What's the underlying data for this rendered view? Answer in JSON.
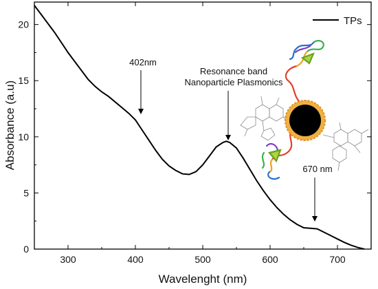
{
  "chart_data": {
    "type": "line",
    "xlabel": "Wavelenght (nm)",
    "ylabel": "Absorbance (a.u)",
    "xlim": [
      250,
      750
    ],
    "ylim": [
      0,
      22
    ],
    "xticks": [
      300,
      400,
      500,
      600,
      700
    ],
    "yticks": [
      0,
      5,
      10,
      15,
      20
    ],
    "grid": false,
    "legend_position": "top-right",
    "series": [
      {
        "name": "TPs",
        "color": "#000000",
        "x": [
          250,
          260,
          270,
          280,
          290,
          300,
          310,
          320,
          330,
          340,
          350,
          360,
          370,
          380,
          390,
          400,
          410,
          420,
          430,
          440,
          450,
          460,
          470,
          480,
          490,
          500,
          510,
          520,
          530,
          535,
          540,
          550,
          560,
          570,
          580,
          590,
          600,
          610,
          620,
          630,
          640,
          650,
          660,
          670,
          680,
          690,
          700,
          710,
          720,
          730,
          740
        ],
        "y": [
          21.7,
          20.9,
          20.1,
          19.3,
          18.4,
          17.5,
          16.7,
          15.9,
          15.1,
          14.5,
          14.0,
          13.6,
          13.1,
          12.6,
          12.1,
          11.5,
          10.6,
          9.7,
          8.8,
          8.0,
          7.4,
          7.0,
          6.7,
          6.65,
          6.9,
          7.5,
          8.3,
          9.1,
          9.5,
          9.6,
          9.5,
          9.0,
          8.1,
          7.1,
          6.1,
          5.2,
          4.4,
          3.7,
          3.1,
          2.6,
          2.2,
          1.9,
          1.85,
          1.8,
          1.5,
          1.2,
          0.9,
          0.6,
          0.35,
          0.15,
          0.0
        ]
      }
    ],
    "annotations": [
      {
        "text": "402nm",
        "x": 402,
        "y": 11.5
      },
      {
        "text": "Resonance band",
        "x": 533,
        "y": 9.6
      },
      {
        "text": "Nanoparticle Plasmonics",
        "x": 533,
        "y": 9.6
      },
      {
        "text": "670 nm",
        "x": 665,
        "y": 1.85
      }
    ]
  }
}
